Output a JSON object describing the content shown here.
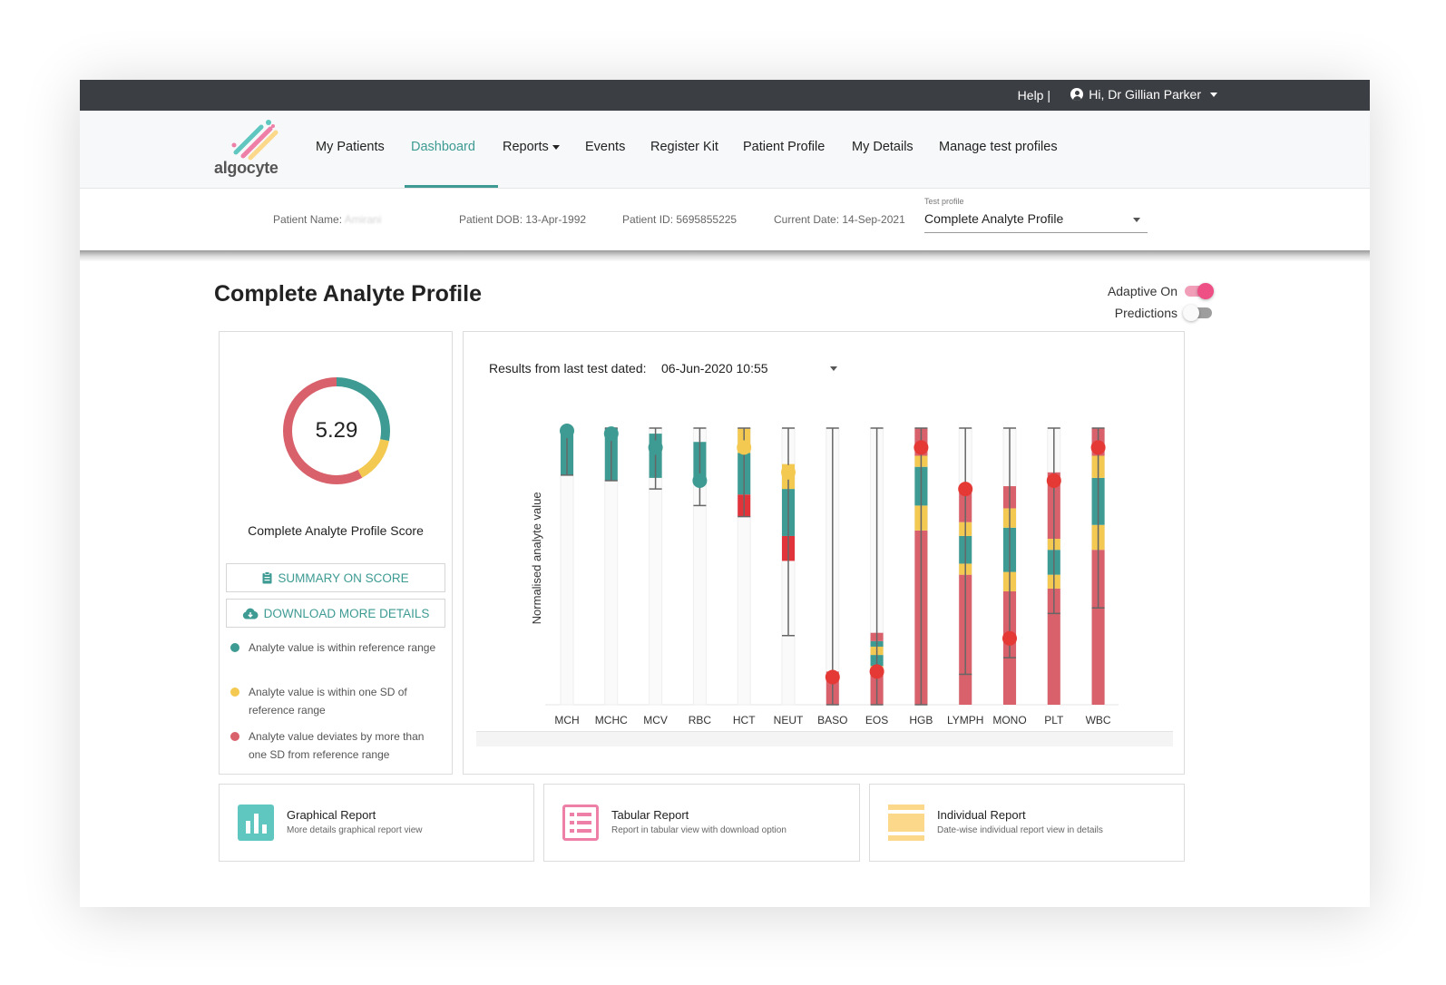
{
  "topbar": {
    "help": "Help |",
    "user_greeting": "Hi, Dr Gillian Parker"
  },
  "brand": {
    "name": "algocyte"
  },
  "nav": {
    "items": [
      {
        "label": "My Patients"
      },
      {
        "label": "Dashboard"
      },
      {
        "label": "Reports"
      },
      {
        "label": "Events"
      },
      {
        "label": "Register Kit"
      },
      {
        "label": "Patient Profile"
      },
      {
        "label": "My Details"
      },
      {
        "label": "Manage test profiles"
      }
    ],
    "active": "Dashboard"
  },
  "patient": {
    "name_label": "Patient Name:",
    "name_value": "Amirani",
    "dob": "Patient DOB: 13-Apr-1992",
    "id": "Patient ID: 5695855225",
    "current_date": "Current Date: 14-Sep-2021",
    "test_profile_label": "Test profile",
    "test_profile_value": "Complete Analyte Profile"
  },
  "page": {
    "title": "Complete Analyte Profile"
  },
  "toggles": {
    "adaptive": {
      "label": "Adaptive On",
      "on": true
    },
    "predictions": {
      "label": "Predictions",
      "on": false
    }
  },
  "score": {
    "value": "5.29",
    "label": "Complete Analyte Profile Score",
    "segments": {
      "green": 0.28,
      "yellow": 0.14,
      "red": 0.58
    },
    "summary_button": "SUMMARY ON SCORE",
    "download_button": "DOWNLOAD MORE DETAILS"
  },
  "legend": [
    {
      "text": "Analyte value is within reference range",
      "color": "#3d9b93"
    },
    {
      "text": "Analyte value is within one SD of reference range",
      "color": "#f4c952"
    },
    {
      "text": "Analyte value deviates by more than one SD from reference range",
      "color": "#d9616b"
    }
  ],
  "results": {
    "label": "Results from last test dated:",
    "date": "06-Jun-2020 10:55"
  },
  "colors": {
    "accent": "#3d9b93",
    "green": "#3d9b93",
    "yellow": "#f4c952",
    "red": "#d9616b",
    "red_marker": "#e53935",
    "bright_red": "#e0343a",
    "topbar": "#3b3e42",
    "pink": "#ee5a8a"
  },
  "chart_data": {
    "type": "bar",
    "ylabel": "Normalised analyte value",
    "ylim": [
      0,
      1
    ],
    "categories": [
      "MCH",
      "MCHC",
      "MCV",
      "RBC",
      "HCT",
      "NEUT",
      "BASO",
      "EOS",
      "HGB",
      "LYMPH",
      "MONO",
      "PLT",
      "WBC"
    ],
    "analytes": [
      {
        "name": "MCH",
        "value": 0.99,
        "range": [
          0.83,
          1.0
        ],
        "whisker": [
          0.83,
          1.0
        ],
        "segments": [
          {
            "from": 0.83,
            "to": 1.0,
            "color": "green"
          }
        ],
        "marker": "green"
      },
      {
        "name": "MCHC",
        "value": 0.98,
        "range": [
          0.81,
          1.0
        ],
        "whisker": [
          0.81,
          1.0
        ],
        "segments": [
          {
            "from": 0.81,
            "to": 1.0,
            "color": "green"
          }
        ],
        "marker": "green"
      },
      {
        "name": "MCV",
        "value": 0.93,
        "range": [
          0.78,
          0.98
        ],
        "whisker": [
          0.78,
          1.0
        ],
        "segments": [
          {
            "from": 0.82,
            "to": 0.98,
            "color": "green"
          }
        ],
        "marker": "green"
      },
      {
        "name": "RBC",
        "value": 0.81,
        "range": [
          0.72,
          0.95
        ],
        "whisker": [
          0.72,
          1.0
        ],
        "segments": [
          {
            "from": 0.81,
            "to": 0.95,
            "color": "green"
          }
        ],
        "marker": "green"
      },
      {
        "name": "HCT",
        "value": 0.93,
        "range": [
          0.68,
          1.0
        ],
        "whisker": [
          0.68,
          1.0
        ],
        "segments": [
          {
            "from": 0.68,
            "to": 0.76,
            "color": "brightred"
          },
          {
            "from": 0.76,
            "to": 0.91,
            "color": "green"
          },
          {
            "from": 0.91,
            "to": 1.0,
            "color": "yellow"
          }
        ],
        "marker": "yellow"
      },
      {
        "name": "NEUT",
        "value": 0.84,
        "range": [
          0.25,
          0.87
        ],
        "whisker": [
          0.25,
          1.0
        ],
        "segments": [
          {
            "from": 0.52,
            "to": 0.61,
            "color": "brightred"
          },
          {
            "from": 0.61,
            "to": 0.78,
            "color": "green"
          },
          {
            "from": 0.78,
            "to": 0.87,
            "color": "yellow"
          }
        ],
        "marker": "yellow"
      },
      {
        "name": "BASO",
        "value": 0.1,
        "range": [
          0.0,
          0.12
        ],
        "whisker": [
          0.0,
          1.0
        ],
        "segments": [
          {
            "from": 0.0,
            "to": 0.12,
            "color": "red"
          }
        ],
        "marker": "red"
      },
      {
        "name": "EOS",
        "value": 0.12,
        "range": [
          0.0,
          0.26
        ],
        "whisker": [
          0.0,
          1.0
        ],
        "segments": [
          {
            "from": 0.0,
            "to": 0.11,
            "color": "red"
          },
          {
            "from": 0.11,
            "to": 0.14,
            "color": "yellow"
          },
          {
            "from": 0.14,
            "to": 0.18,
            "color": "green"
          },
          {
            "from": 0.18,
            "to": 0.21,
            "color": "yellow"
          },
          {
            "from": 0.21,
            "to": 0.23,
            "color": "green"
          },
          {
            "from": 0.23,
            "to": 0.26,
            "color": "red"
          }
        ],
        "marker": "red"
      },
      {
        "name": "HGB",
        "value": 0.93,
        "range": [
          0.0,
          1.0
        ],
        "whisker": [
          0.0,
          1.0
        ],
        "segments": [
          {
            "from": 0.0,
            "to": 0.63,
            "color": "red"
          },
          {
            "from": 0.63,
            "to": 0.72,
            "color": "yellow"
          },
          {
            "from": 0.72,
            "to": 0.86,
            "color": "green"
          },
          {
            "from": 0.86,
            "to": 0.9,
            "color": "yellow"
          },
          {
            "from": 0.9,
            "to": 1.0,
            "color": "red"
          }
        ],
        "marker": "red"
      },
      {
        "name": "LYMPH",
        "value": 0.78,
        "range": [
          0.0,
          0.79
        ],
        "whisker": [
          0.11,
          1.0
        ],
        "segments": [
          {
            "from": 0.0,
            "to": 0.47,
            "color": "red"
          },
          {
            "from": 0.47,
            "to": 0.51,
            "color": "yellow"
          },
          {
            "from": 0.51,
            "to": 0.61,
            "color": "green"
          },
          {
            "from": 0.61,
            "to": 0.66,
            "color": "yellow"
          },
          {
            "from": 0.66,
            "to": 0.79,
            "color": "red"
          }
        ],
        "marker": "red"
      },
      {
        "name": "MONO",
        "value": 0.24,
        "range": [
          0.0,
          0.79
        ],
        "whisker": [
          0.17,
          1.0
        ],
        "segments": [
          {
            "from": 0.0,
            "to": 0.41,
            "color": "red"
          },
          {
            "from": 0.41,
            "to": 0.48,
            "color": "yellow"
          },
          {
            "from": 0.48,
            "to": 0.64,
            "color": "green"
          },
          {
            "from": 0.64,
            "to": 0.71,
            "color": "yellow"
          },
          {
            "from": 0.71,
            "to": 0.79,
            "color": "red"
          }
        ],
        "marker": "red"
      },
      {
        "name": "PLT",
        "value": 0.81,
        "range": [
          0.0,
          0.84
        ],
        "whisker": [
          0.33,
          1.0
        ],
        "segments": [
          {
            "from": 0.0,
            "to": 0.42,
            "color": "red"
          },
          {
            "from": 0.42,
            "to": 0.47,
            "color": "yellow"
          },
          {
            "from": 0.47,
            "to": 0.56,
            "color": "green"
          },
          {
            "from": 0.56,
            "to": 0.6,
            "color": "yellow"
          },
          {
            "from": 0.6,
            "to": 0.84,
            "color": "red"
          }
        ],
        "marker": "red"
      },
      {
        "name": "WBC",
        "value": 0.93,
        "range": [
          0.0,
          1.0
        ],
        "whisker": [
          0.35,
          1.0
        ],
        "segments": [
          {
            "from": 0.0,
            "to": 0.56,
            "color": "red"
          },
          {
            "from": 0.56,
            "to": 0.65,
            "color": "yellow"
          },
          {
            "from": 0.65,
            "to": 0.82,
            "color": "green"
          },
          {
            "from": 0.82,
            "to": 0.9,
            "color": "yellow"
          },
          {
            "from": 0.9,
            "to": 1.0,
            "color": "red"
          }
        ],
        "marker": "red"
      }
    ]
  },
  "reports": [
    {
      "title": "Graphical Report",
      "subtitle": "More details graphical report view",
      "icon": "bar-chart-icon",
      "color": "#5fc7c0"
    },
    {
      "title": "Tabular Report",
      "subtitle": "Report in tabular view with download option",
      "icon": "list-icon",
      "color": "#ee7fa6"
    },
    {
      "title": "Individual Report",
      "subtitle": "Date-wise individual report view in details",
      "icon": "layers-icon",
      "color": "#fcd98a"
    }
  ]
}
